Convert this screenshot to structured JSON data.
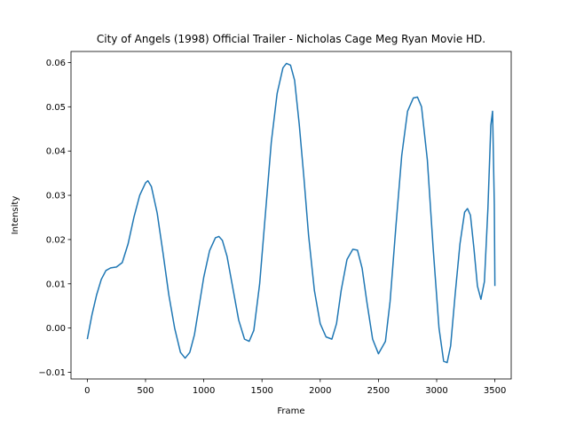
{
  "chart_data": {
    "type": "line",
    "title": "City of Angels (1998) Official Trailer - Nicholas Cage Meg Ryan Movie HD.",
    "xlabel": "Frame",
    "ylabel": "Intensity",
    "xlim": [
      -140,
      3640
    ],
    "ylim": [
      -0.0115,
      0.0625
    ],
    "xticks": [
      0,
      500,
      1000,
      1500,
      2000,
      2500,
      3000,
      3500
    ],
    "xtick_labels": [
      "0",
      "500",
      "1000",
      "1500",
      "2000",
      "2500",
      "3000",
      "3500"
    ],
    "yticks": [
      -0.01,
      0.0,
      0.01,
      0.02,
      0.03,
      0.04,
      0.05,
      0.06
    ],
    "ytick_labels": [
      "−0.01",
      "0.00",
      "0.01",
      "0.02",
      "0.03",
      "0.04",
      "0.05",
      "0.06"
    ],
    "grid": false,
    "series": [
      {
        "color": "#1f77b4",
        "x": [
          0,
          40,
          80,
          120,
          160,
          200,
          250,
          300,
          350,
          400,
          450,
          500,
          520,
          550,
          600,
          650,
          700,
          750,
          800,
          840,
          880,
          920,
          960,
          1000,
          1050,
          1100,
          1130,
          1160,
          1200,
          1250,
          1300,
          1350,
          1390,
          1430,
          1480,
          1530,
          1580,
          1630,
          1680,
          1710,
          1745,
          1780,
          1820,
          1860,
          1900,
          1950,
          2000,
          2050,
          2100,
          2140,
          2180,
          2230,
          2280,
          2320,
          2360,
          2400,
          2450,
          2500,
          2560,
          2600,
          2650,
          2700,
          2750,
          2800,
          2835,
          2870,
          2920,
          2970,
          3020,
          3060,
          3090,
          3120,
          3160,
          3200,
          3240,
          3265,
          3290,
          3320,
          3350,
          3380,
          3410,
          3440,
          3465,
          3480,
          3495,
          3500
        ],
        "y": [
          -0.0025,
          0.003,
          0.0075,
          0.011,
          0.013,
          0.0136,
          0.0138,
          0.0148,
          0.019,
          0.025,
          0.03,
          0.0328,
          0.0333,
          0.032,
          0.026,
          0.017,
          0.0075,
          0.0,
          -0.0055,
          -0.0068,
          -0.0055,
          -0.0015,
          0.005,
          0.0115,
          0.0175,
          0.0204,
          0.0207,
          0.0198,
          0.0162,
          0.009,
          0.0018,
          -0.0025,
          -0.003,
          -0.0005,
          0.01,
          0.026,
          0.042,
          0.053,
          0.0588,
          0.0598,
          0.0594,
          0.056,
          0.046,
          0.034,
          0.021,
          0.0085,
          0.001,
          -0.002,
          -0.0025,
          0.001,
          0.0085,
          0.0155,
          0.0178,
          0.0176,
          0.0135,
          0.006,
          -0.0025,
          -0.0058,
          -0.003,
          0.006,
          0.023,
          0.039,
          0.049,
          0.052,
          0.0522,
          0.05,
          0.038,
          0.018,
          0.0,
          -0.0075,
          -0.0078,
          -0.004,
          0.008,
          0.019,
          0.0262,
          0.027,
          0.0255,
          0.018,
          0.0095,
          0.0065,
          0.0105,
          0.027,
          0.0458,
          0.049,
          0.028,
          0.0095
        ]
      }
    ]
  }
}
